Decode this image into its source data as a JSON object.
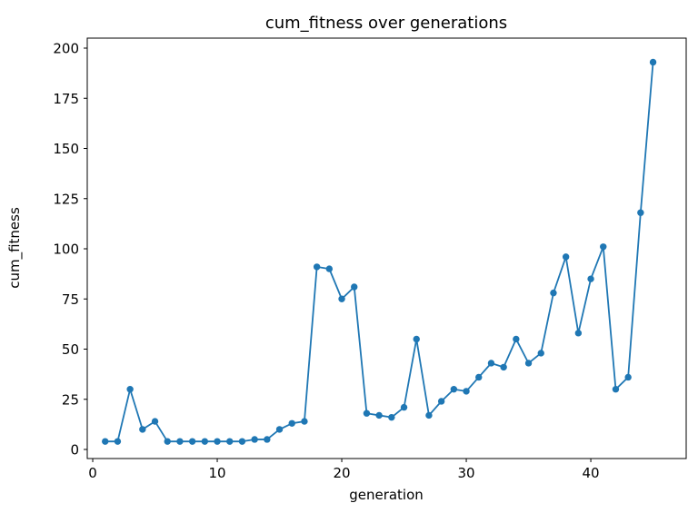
{
  "figure": {
    "background_color": "#ffffff",
    "text_color": "#000000",
    "spine_color": "#000000"
  },
  "chart_data": {
    "type": "line",
    "title": "cum_fitness over generations",
    "xlabel": "generation",
    "ylabel": "cum_fitness",
    "series": [
      {
        "name": "cum_fitness",
        "x": [
          1,
          2,
          3,
          4,
          5,
          6,
          7,
          8,
          9,
          10,
          11,
          12,
          13,
          14,
          15,
          16,
          17,
          18,
          19,
          20,
          21,
          22,
          23,
          24,
          25,
          26,
          27,
          28,
          29,
          30,
          31,
          32,
          33,
          34,
          35,
          36,
          37,
          38,
          39,
          40,
          41,
          42,
          43,
          44,
          45
        ],
        "values": [
          4,
          4,
          30,
          10,
          14,
          4,
          4,
          4,
          4,
          4,
          4,
          4,
          5,
          5,
          10,
          13,
          14,
          91,
          90,
          75,
          81,
          18,
          17,
          16,
          21,
          55,
          17,
          24,
          30,
          29,
          36,
          43,
          41,
          55,
          43,
          48,
          78,
          96,
          58,
          85,
          101,
          30,
          36,
          118,
          193
        ],
        "line_color": "#1f77b4",
        "marker": "circle",
        "marker_color": "#1f77b4"
      }
    ],
    "xticks": [
      0,
      10,
      20,
      30,
      40
    ],
    "yticks": [
      0,
      25,
      50,
      75,
      100,
      125,
      150,
      175,
      200
    ],
    "xlim": [
      -0.44,
      47.66
    ],
    "ylim": [
      -4.52,
      204.98
    ],
    "grid": false,
    "legend": "none"
  }
}
